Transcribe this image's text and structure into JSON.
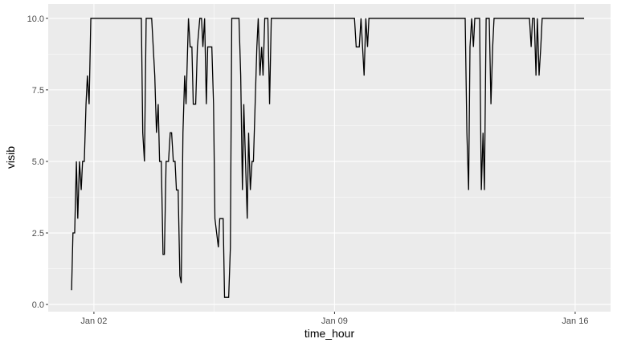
{
  "chart_data": {
    "type": "line",
    "x_label": "time_hour",
    "y_label": "visib",
    "x": [
      1.35,
      1.39,
      1.44,
      1.49,
      1.53,
      1.58,
      1.63,
      1.67,
      1.72,
      1.77,
      1.81,
      1.86,
      1.91,
      3.38,
      3.42,
      3.47,
      3.52,
      3.68,
      3.77,
      3.82,
      3.87,
      3.91,
      3.96,
      4.01,
      4.05,
      4.1,
      4.17,
      4.22,
      4.26,
      4.31,
      4.36,
      4.4,
      4.45,
      4.5,
      4.54,
      4.59,
      4.64,
      4.68,
      4.75,
      4.8,
      4.85,
      4.89,
      4.96,
      5.01,
      5.08,
      5.13,
      5.17,
      5.22,
      5.27,
      5.31,
      5.43,
      5.48,
      5.52,
      5.57,
      5.62,
      5.66,
      5.76,
      5.8,
      5.92,
      5.97,
      6.01,
      6.22,
      6.27,
      6.32,
      6.36,
      6.41,
      6.46,
      6.5,
      6.55,
      6.6,
      6.64,
      6.69,
      6.74,
      6.78,
      6.83,
      6.88,
      6.92,
      6.97,
      7.06,
      7.11,
      7.16,
      9.58,
      9.63,
      9.72,
      9.77,
      9.86,
      9.91,
      9.96,
      10.0,
      12.8,
      12.85,
      12.9,
      12.94,
      12.99,
      13.04,
      13.08,
      13.22,
      13.27,
      13.32,
      13.36,
      13.41,
      13.5,
      13.55,
      13.6,
      13.64,
      14.67,
      14.72,
      14.76,
      14.81,
      14.86,
      14.9,
      14.95,
      15.0,
      15.04,
      16.26
    ],
    "series": [
      {
        "color": "#000000",
        "values": [
          0.5,
          2.5,
          2.5,
          5,
          3,
          5,
          4,
          5,
          5,
          7,
          8,
          7,
          10,
          10,
          6,
          5,
          10,
          10,
          8,
          6,
          7,
          5,
          5,
          1.75,
          1.75,
          5,
          5,
          6,
          6,
          5,
          5,
          4,
          4,
          1,
          0.75,
          6,
          8,
          7,
          10,
          9,
          9,
          7,
          7,
          9,
          10,
          10,
          9,
          10,
          7,
          9,
          9,
          7,
          3,
          2.5,
          2,
          3,
          3,
          0.25,
          0.25,
          2,
          10,
          10,
          8,
          4,
          7,
          5,
          3,
          6,
          4,
          5,
          5,
          7,
          9,
          10,
          8,
          9,
          8,
          10,
          10,
          7,
          10,
          10,
          9,
          9,
          10,
          8,
          10,
          9,
          10,
          10,
          6,
          4,
          9,
          10,
          9,
          10,
          10,
          4,
          6,
          4,
          10,
          10,
          7,
          9,
          10,
          10,
          9,
          10,
          10,
          8,
          10,
          8,
          9,
          10,
          10
        ]
      }
    ],
    "xlim": [
      0.67,
      17.03
    ],
    "ylim": [
      -0.25,
      10.5
    ],
    "xticks": [
      {
        "value": 2,
        "label": "Jan 02"
      },
      {
        "value": 9,
        "label": "Jan 09"
      },
      {
        "value": 16,
        "label": "Jan 16"
      }
    ],
    "yticks": [
      {
        "value": 0,
        "label": "0.0"
      },
      {
        "value": 2.5,
        "label": "2.5"
      },
      {
        "value": 5,
        "label": "5.0"
      },
      {
        "value": 7.5,
        "label": "7.5"
      },
      {
        "value": 10,
        "label": "10.0"
      }
    ],
    "grid": true
  }
}
